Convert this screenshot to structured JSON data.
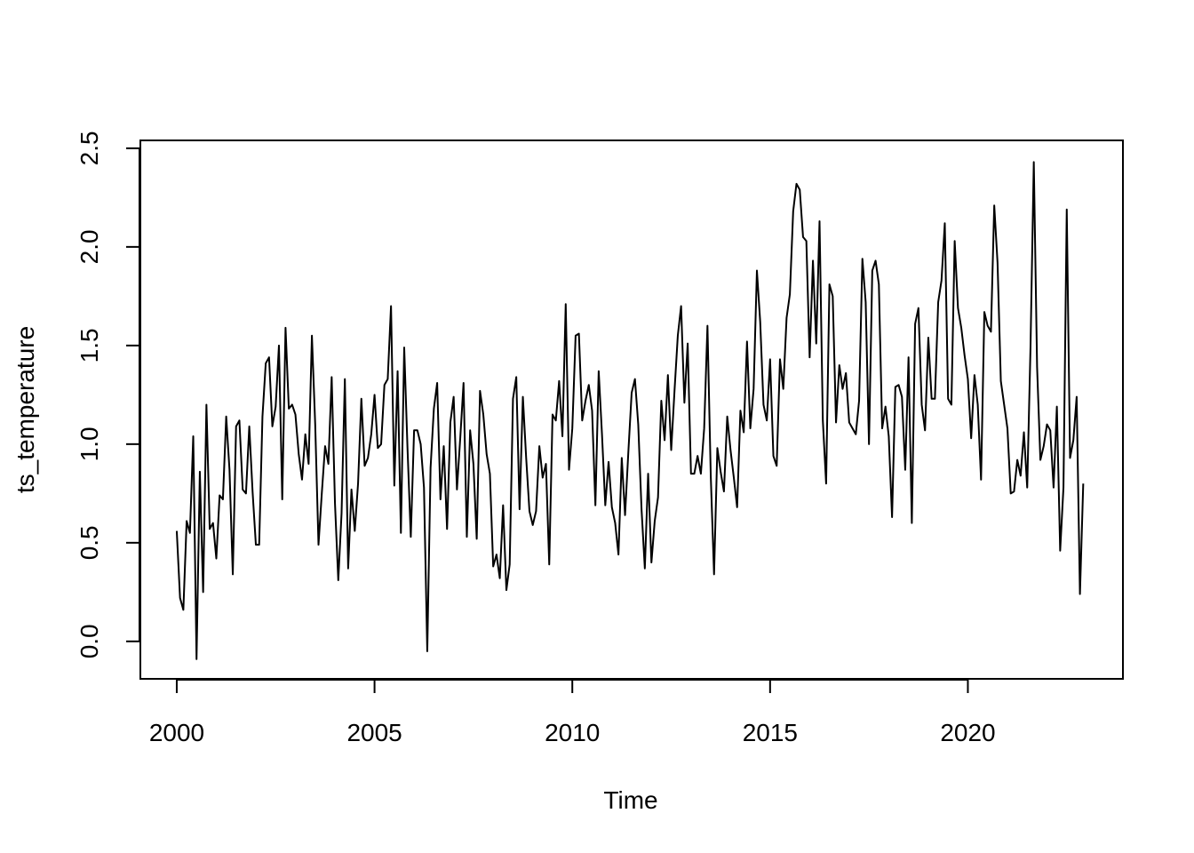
{
  "chart_data": {
    "type": "line",
    "xlabel": "Time",
    "ylabel": "ts_temperature",
    "xlim": [
      1999.08,
      2023.92
    ],
    "ylim": [
      -0.19,
      2.54
    ],
    "x_ticks": [
      2000,
      2005,
      2010,
      2015,
      2020
    ],
    "x_tick_labels": [
      "2000",
      "2005",
      "2010",
      "2015",
      "2020"
    ],
    "y_ticks": [
      0.0,
      0.5,
      1.0,
      1.5,
      2.0,
      2.5
    ],
    "y_tick_labels": [
      "0.0",
      "0.5",
      "1.0",
      "1.5",
      "2.0",
      "2.5"
    ],
    "grid": false,
    "legend": "none",
    "line_color": "#000000",
    "start": 2000,
    "frequency": 12,
    "series": [
      {
        "values": [
          0.56,
          0.22,
          0.16,
          0.61,
          0.55,
          1.04,
          -0.09,
          0.86,
          0.25,
          1.2,
          0.57,
          0.6,
          0.42,
          0.74,
          0.72,
          1.14,
          0.87,
          0.34,
          1.09,
          1.12,
          0.77,
          0.75,
          1.09,
          0.76,
          0.49,
          0.49,
          1.14,
          1.41,
          1.44,
          1.09,
          1.19,
          1.5,
          0.72,
          1.59,
          1.18,
          1.2,
          1.15,
          0.95,
          0.82,
          1.05,
          0.9,
          1.55,
          1.1,
          0.49,
          0.75,
          0.99,
          0.9,
          1.34,
          0.7,
          0.31,
          0.65,
          1.33,
          0.37,
          0.77,
          0.56,
          0.8,
          1.23,
          0.89,
          0.93,
          1.05,
          1.25,
          0.98,
          1.0,
          1.3,
          1.33,
          1.7,
          0.79,
          1.37,
          0.55,
          1.49,
          0.98,
          0.53,
          1.07,
          1.07,
          1.0,
          0.78,
          -0.05,
          0.88,
          1.18,
          1.31,
          0.72,
          0.99,
          0.57,
          1.11,
          1.24,
          0.77,
          1.03,
          1.31,
          0.53,
          1.07,
          0.9,
          0.52,
          1.27,
          1.15,
          0.95,
          0.85,
          0.38,
          0.44,
          0.32,
          0.69,
          0.26,
          0.39,
          1.23,
          1.34,
          0.67,
          1.24,
          0.93,
          0.66,
          0.59,
          0.66,
          0.99,
          0.83,
          0.9,
          0.39,
          1.15,
          1.12,
          1.32,
          1.04,
          1.71,
          0.87,
          1.08,
          1.55,
          1.56,
          1.12,
          1.22,
          1.3,
          1.17,
          0.69,
          1.37,
          1.05,
          0.69,
          0.91,
          0.68,
          0.6,
          0.44,
          0.93,
          0.64,
          0.96,
          1.26,
          1.33,
          1.1,
          0.67,
          0.37,
          0.85,
          0.4,
          0.61,
          0.73,
          1.22,
          1.02,
          1.35,
          0.97,
          1.27,
          1.55,
          1.7,
          1.21,
          1.51,
          0.85,
          0.85,
          0.94,
          0.85,
          1.08,
          1.6,
          0.84,
          0.34,
          0.98,
          0.86,
          0.76,
          1.14,
          0.97,
          0.83,
          0.68,
          1.17,
          1.06,
          1.52,
          1.08,
          1.28,
          1.88,
          1.62,
          1.2,
          1.12,
          1.43,
          0.94,
          0.89,
          1.43,
          1.28,
          1.64,
          1.76,
          2.18,
          2.32,
          2.29,
          2.05,
          2.03,
          1.44,
          1.93,
          1.51,
          2.13,
          1.12,
          0.8,
          1.81,
          1.75,
          1.11,
          1.4,
          1.28,
          1.36,
          1.11,
          1.08,
          1.05,
          1.22,
          1.94,
          1.72,
          1.0,
          1.88,
          1.93,
          1.81,
          1.08,
          1.19,
          1.04,
          0.63,
          1.29,
          1.3,
          1.24,
          0.87,
          1.44,
          0.6,
          1.61,
          1.69,
          1.2,
          1.07,
          1.54,
          1.23,
          1.23,
          1.72,
          1.83,
          2.12,
          1.23,
          1.2,
          2.03,
          1.69,
          1.59,
          1.45,
          1.33,
          1.03,
          1.35,
          1.2,
          0.82,
          1.67,
          1.6,
          1.57,
          2.21,
          1.92,
          1.32,
          1.2,
          1.08,
          0.75,
          0.76,
          0.92,
          0.84,
          1.06,
          0.78,
          1.49,
          2.43,
          1.39,
          0.92,
          0.99,
          1.1,
          1.07,
          0.78,
          1.19,
          0.46,
          0.78,
          2.19,
          0.93,
          1.02,
          1.24,
          0.24,
          0.8
        ]
      }
    ]
  }
}
